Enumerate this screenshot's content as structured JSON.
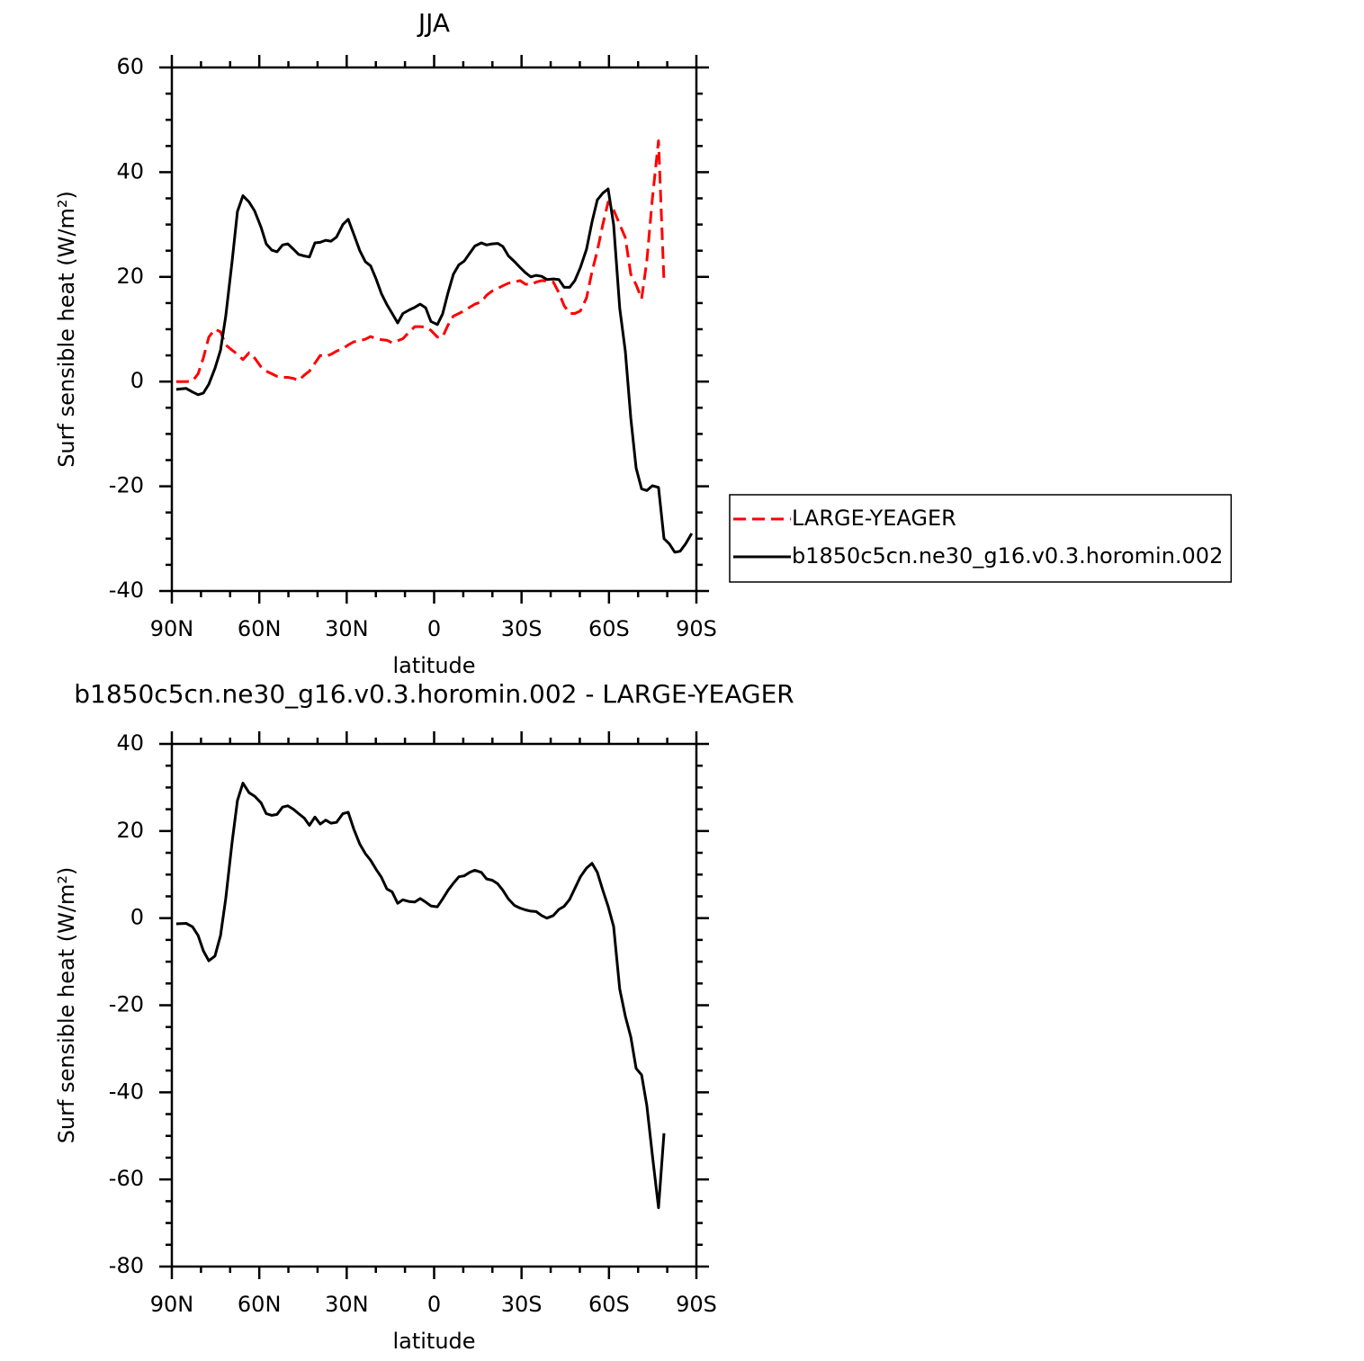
{
  "chart_data": [
    {
      "type": "line",
      "title": "JJA",
      "x_label": "latitude",
      "y_label": "Surf sensible heat (W/m²)",
      "xlim": [
        90,
        -90
      ],
      "xticks": [
        {
          "value": 90,
          "label": "90N"
        },
        {
          "value": 60,
          "label": "60N"
        },
        {
          "value": 30,
          "label": "30N"
        },
        0,
        {
          "value": -30,
          "label": "30S"
        },
        {
          "value": -60,
          "label": "60S"
        },
        {
          "value": -90,
          "label": "90S"
        }
      ],
      "xminorticks": [
        80,
        70,
        50,
        40,
        20,
        10,
        -10,
        -20,
        -40,
        -50,
        -70,
        -80
      ],
      "ylim": [
        -40,
        60
      ],
      "yticks": [
        -40,
        -20,
        0,
        20,
        40,
        60
      ],
      "yminorticks": [
        -35,
        -30,
        -25,
        -15,
        -10,
        -5,
        5,
        10,
        15,
        25,
        30,
        35,
        45,
        50,
        55
      ],
      "legend": "right",
      "x": [
        88.5,
        85.1,
        82.9,
        81.0,
        79.2,
        77.3,
        75.2,
        73.3,
        71.5,
        69.3,
        67.5,
        65.6,
        63.5,
        61.6,
        59.4,
        57.6,
        55.7,
        53.9,
        52.0,
        50.2,
        48.3,
        46.5,
        44.6,
        42.8,
        40.9,
        39.1,
        37.2,
        35.4,
        33.5,
        31.3,
        29.5,
        27.6,
        25.5,
        23.6,
        21.8,
        19.9,
        18.1,
        16.2,
        14.4,
        12.5,
        10.7,
        8.5,
        6.6,
        4.8,
        2.9,
        1.1,
        -1.1,
        -2.9,
        -4.8,
        -6.6,
        -8.5,
        -10.3,
        -12.2,
        -14.0,
        -16.2,
        -18.0,
        -19.9,
        -21.8,
        -23.6,
        -25.5,
        -27.6,
        -29.5,
        -31.3,
        -33.2,
        -35.0,
        -36.9,
        -38.7,
        -40.9,
        -42.8,
        -44.6,
        -46.5,
        -48.3,
        -50.2,
        -52.3,
        -54.2,
        -56.0,
        -57.9,
        -59.7,
        -61.6,
        -63.7,
        -65.6,
        -67.5,
        -69.3,
        -71.2,
        -73.0,
        -74.9,
        -77.0,
        -78.9,
        -80.7,
        -82.6,
        -84.4,
        -86.3,
        -88.4
      ],
      "series": [
        {
          "name": "LARGE-YEAGER",
          "color": "#ff0000",
          "dash": true,
          "values": [
            0,
            0,
            0.1,
            1.5,
            4.5,
            8.5,
            10,
            9.5,
            7,
            6,
            5.2,
            4.2,
            5.5,
            4.5,
            2.8,
            2,
            1.5,
            1,
            0.8,
            0.8,
            0.6,
            0.2,
            1.2,
            2,
            3.5,
            5,
            4.8,
            5.2,
            5.8,
            6.3,
            7,
            7.6,
            7.8,
            8.1,
            8.6,
            8.2,
            8,
            7.9,
            7.4,
            7.8,
            8.2,
            9.5,
            10.5,
            10.5,
            10.4,
            9.8,
            8.5,
            8.5,
            10.8,
            12.5,
            13,
            13.5,
            14.2,
            14.8,
            15.2,
            16.5,
            17.3,
            17.8,
            18.3,
            18.8,
            19,
            19.3,
            18.6,
            18.5,
            19,
            19.3,
            19.2,
            19,
            17,
            14.5,
            13,
            13,
            13.5,
            16,
            21,
            25,
            30,
            34.3,
            32.8,
            30,
            27.5,
            20.5,
            18.5,
            15.8,
            23,
            35,
            46,
            19,
            null,
            null,
            null,
            null,
            null
          ]
        },
        {
          "name": "b1850c5cn.ne30_g16.v0.3.horomin.002",
          "color": "#000000",
          "dash": false,
          "values": [
            -1.5,
            -1.3,
            -2.0,
            -2.5,
            -2.2,
            -0.5,
            2.5,
            6,
            12.5,
            23,
            32.5,
            35.5,
            34.3,
            32.6,
            29.5,
            26.3,
            25.1,
            24.8,
            26.1,
            26.3,
            25.3,
            24.3,
            24.0,
            23.8,
            26.5,
            26.6,
            27,
            26.8,
            27.6,
            30,
            31,
            28.2,
            25,
            22.9,
            22.1,
            19.6,
            16.8,
            14.7,
            13,
            11.2,
            13,
            13.7,
            14.2,
            14.8,
            14.1,
            11.5,
            10.9,
            12.9,
            17,
            20.5,
            22.3,
            23,
            24.5,
            25.9,
            26.5,
            26.1,
            26.3,
            26.4,
            25.8,
            24,
            22.9,
            21.8,
            20.8,
            20,
            20.3,
            20.1,
            19.5,
            19.6,
            19.5,
            18,
            18,
            19.3,
            21.8,
            25.3,
            30.5,
            34.7,
            36,
            36.8,
            30,
            14,
            5.8,
            -7,
            -16.5,
            -20.5,
            -20.8,
            -19.9,
            -20.2,
            -30,
            -31,
            -32.6,
            -32.4,
            -31,
            -29
          ]
        }
      ]
    },
    {
      "type": "line",
      "title": "b1850c5cn.ne30_g16.v0.3.horomin.002 - LARGE-YEAGER",
      "x_label": "latitude",
      "y_label": "Surf sensible heat (W/m²)",
      "xlim": [
        90,
        -90
      ],
      "xticks": [
        {
          "value": 90,
          "label": "90N"
        },
        {
          "value": 60,
          "label": "60N"
        },
        {
          "value": 30,
          "label": "30N"
        },
        0,
        {
          "value": -30,
          "label": "30S"
        },
        {
          "value": -60,
          "label": "60S"
        },
        {
          "value": -90,
          "label": "90S"
        }
      ],
      "xminorticks": [
        80,
        70,
        50,
        40,
        20,
        10,
        -10,
        -20,
        -40,
        -50,
        -70,
        -80
      ],
      "ylim": [
        -80,
        40
      ],
      "yticks": [
        -80,
        -60,
        -40,
        -20,
        0,
        20,
        40
      ],
      "yminorticks": [
        -75,
        -70,
        -65,
        -55,
        -50,
        -45,
        -35,
        -30,
        -25,
        -15,
        -10,
        -5,
        5,
        10,
        15,
        25,
        30,
        35
      ],
      "x": [
        88.5,
        85.1,
        82.9,
        81.0,
        79.2,
        77.3,
        75.2,
        73.3,
        71.5,
        69.3,
        67.5,
        65.6,
        63.5,
        61.6,
        59.4,
        57.6,
        55.7,
        53.9,
        52.0,
        50.2,
        48.3,
        46.5,
        44.6,
        42.8,
        40.9,
        39.1,
        37.2,
        35.4,
        33.5,
        31.3,
        29.5,
        27.6,
        25.5,
        23.6,
        21.8,
        19.9,
        18.1,
        16.2,
        14.4,
        12.5,
        10.7,
        8.5,
        6.6,
        4.8,
        2.9,
        1.1,
        -1.1,
        -2.9,
        -4.8,
        -6.6,
        -8.5,
        -10.3,
        -12.2,
        -14.0,
        -16.2,
        -18.0,
        -19.9,
        -21.8,
        -23.6,
        -25.5,
        -27.6,
        -29.5,
        -31.3,
        -33.2,
        -35.0,
        -36.9,
        -38.7,
        -40.9,
        -42.8,
        -44.6,
        -46.5,
        -48.3,
        -50.2,
        -52.3,
        -54.2,
        -56.0,
        -57.9,
        -59.7,
        -61.6,
        -63.7,
        -65.6,
        -67.5,
        -69.3,
        -71.2,
        -73.0,
        -74.9,
        -77.0,
        -78.9,
        -80.7,
        -82.6,
        -84.4,
        -86.3,
        -88.4
      ],
      "color": "#000000",
      "values": [
        -1.3,
        -1.2,
        -2,
        -4,
        -7.5,
        -9.8,
        -8.7,
        -4,
        4.5,
        17.5,
        27,
        31,
        28.8,
        28,
        26.5,
        24,
        23.6,
        23.8,
        25.5,
        25.8,
        25,
        24,
        23,
        21.3,
        23.2,
        21.6,
        22.5,
        21.8,
        22,
        24,
        24.3,
        20.5,
        17,
        14.8,
        13.3,
        11.2,
        9.4,
        6.7,
        6,
        3.4,
        4.2,
        3.8,
        3.7,
        4.5,
        3.7,
        2.8,
        2.6,
        4.4,
        6.4,
        8,
        9.5,
        9.7,
        10.5,
        11,
        10.5,
        9,
        8.7,
        7.9,
        6.4,
        4.4,
        2.9,
        2.3,
        1.9,
        1.6,
        1.5,
        0.6,
        0,
        0.6,
        2,
        2.7,
        4.3,
        6.8,
        9.5,
        11.5,
        12.6,
        10.5,
        6.4,
        2.7,
        -1.9,
        -16.3,
        -22.5,
        -27.3,
        -34.5,
        -36,
        -43,
        -54.5,
        -66.5,
        -49.4,
        null,
        null,
        null,
        null,
        null
      ]
    }
  ]
}
